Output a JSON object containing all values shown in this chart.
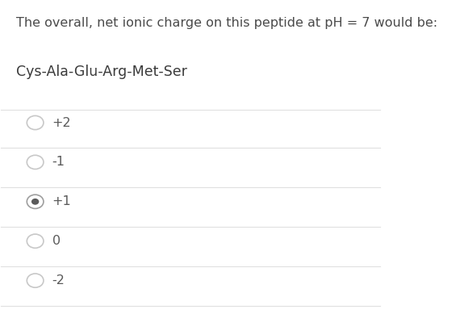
{
  "title": "The overall, net ionic charge on this peptide at pH = 7 would be:",
  "peptide": "Cys-Ala-Glu-Arg-Met-Ser",
  "options": [
    "+2",
    "-1",
    "+1",
    "0",
    "-2"
  ],
  "selected_index": 2,
  "bg_color": "#ffffff",
  "title_color": "#4a4a4a",
  "peptide_color": "#3a3a3a",
  "option_color": "#5a5a5a",
  "divider_color": "#e0e0e0",
  "radio_empty_color": "#c8c8c8",
  "radio_selected_outer": "#9e9e9e",
  "radio_selected_inner": "#5a5a5a",
  "title_fontsize": 11.5,
  "peptide_fontsize": 12.5,
  "option_fontsize": 11.5,
  "fig_width": 5.7,
  "fig_height": 3.94
}
